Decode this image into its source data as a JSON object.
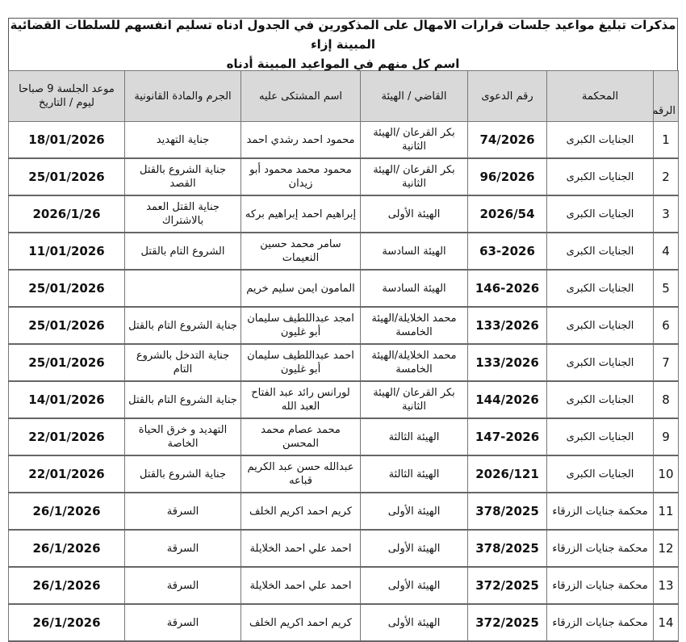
{
  "title": {
    "line1": "مذكرات تبليغ مواعيد جلسات قرارات الامهال على المذكورين في الجدول ادناه تسليم انفسهم للسلطات القضائية المبينة إزاء",
    "line2": "اسم كل منهم في المواعيد المبينة أدناه"
  },
  "headers": {
    "num": "الرقم",
    "court": "المحكمة",
    "case": "رقم الدعوى",
    "judge": "القاضي / الهيئة",
    "name": "اسم المشتكى عليه",
    "crime": "الجرم والمادة القانونية",
    "date": "موعد الجلسة 9 صباحا ليوم / التاريخ"
  },
  "rows": [
    {
      "num": "1",
      "court": "الجنايات الكبرى",
      "case": "74/2026",
      "judge": "بكر القرعان /الهيئة الثانية",
      "name": "محمود احمد رشدي احمد",
      "crime": "جناية التهديد",
      "date": "18/01/2026"
    },
    {
      "num": "2",
      "court": "الجنايات الكبرى",
      "case": "96/2026",
      "judge": "بكر القرعان /الهيئة الثانية",
      "name": "محمود محمد محمود أبو زيدان",
      "crime": "جناية الشروع بالقتل القصد",
      "date": "25/01/2026"
    },
    {
      "num": "3",
      "court": "الجنايات الكبرى",
      "case": "2026/54",
      "judge": "الهيئة الأولى",
      "name": "إبراهيم احمد إبراهيم بركه",
      "crime": "جناية القتل العمد بالاشتراك",
      "date": "2026/1/26"
    },
    {
      "num": "4",
      "court": "الجنايات الكبرى",
      "case": "63-2026",
      "judge": "الهيئة السادسة",
      "name": "سامر محمد حسين النعيمات",
      "crime": "الشروع التام بالقتل",
      "date": "11/01/2026"
    },
    {
      "num": "5",
      "court": "الجنايات الكبرى",
      "case": "146-2026",
      "judge": "الهيئة السادسة",
      "name": "المامون ايمن سليم خريم",
      "crime": "",
      "date": "25/01/2026"
    },
    {
      "num": "6",
      "court": "الجنايات الكبرى",
      "case": "133/2026",
      "judge": "محمد الخلايلة/الهيئة الخامسة",
      "name": "امجد عبداللطيف سليمان أبو غليون",
      "crime": "جناية الشروع التام بالقتل",
      "date": "25/01/2026"
    },
    {
      "num": "7",
      "court": "الجنايات الكبرى",
      "case": "133/2026",
      "judge": "محمد الخلايلة/الهيئة الخامسة",
      "name": "احمد عبداللطيف سليمان أبو غليون",
      "crime": "جناية التدخل بالشروع التام",
      "date": "25/01/2026"
    },
    {
      "num": "8",
      "court": "الجنايات الكبرى",
      "case": "144/2026",
      "judge": "بكر القرعان /الهيئة الثانية",
      "name": "لورانس رائد عبد الفتاح العبد الله",
      "crime": "جناية الشروع التام بالقتل",
      "date": "14/01/2026"
    },
    {
      "num": "9",
      "court": "الجنايات الكبرى",
      "case": "147-2026",
      "judge": "الهيئة الثالثة",
      "name": "محمد عصام محمد المحسن",
      "crime": "التهديد و خرق الحياة الخاصة",
      "date": "22/01/2026"
    },
    {
      "num": "10",
      "court": "الجنايات الكبرى",
      "case": "2026/121",
      "judge": "الهيئة الثالثة",
      "name": "عبدالله حسن عبد الكريم قباعه",
      "crime": "جناية الشروع بالقتل",
      "date": "22/01/2026"
    },
    {
      "num": "11",
      "court": "محكمة جنايات الزرقاء",
      "case": "378/2025",
      "judge": "الهيئة الأولى",
      "name": "كريم احمد اكريم الخلف",
      "crime": "السرقة",
      "date": "26/1/2026"
    },
    {
      "num": "12",
      "court": "محكمة جنايات الزرقاء",
      "case": "378/2025",
      "judge": "الهيئة الأولى",
      "name": "احمد علي احمد الخلايلة",
      "crime": "السرقة",
      "date": "26/1/2026"
    },
    {
      "num": "13",
      "court": "محكمة جنايات الزرقاء",
      "case": "372/2025",
      "judge": "الهيئة الأولى",
      "name": "احمد علي احمد الخلايلة",
      "crime": "السرقة",
      "date": "26/1/2026"
    },
    {
      "num": "14",
      "court": "محكمة جنايات الزرقاء",
      "case": "372/2025",
      "judge": "الهيئة الأولى",
      "name": "كريم احمد اكريم الخلف",
      "crime": "السرقة",
      "date": "26/1/2026"
    }
  ]
}
